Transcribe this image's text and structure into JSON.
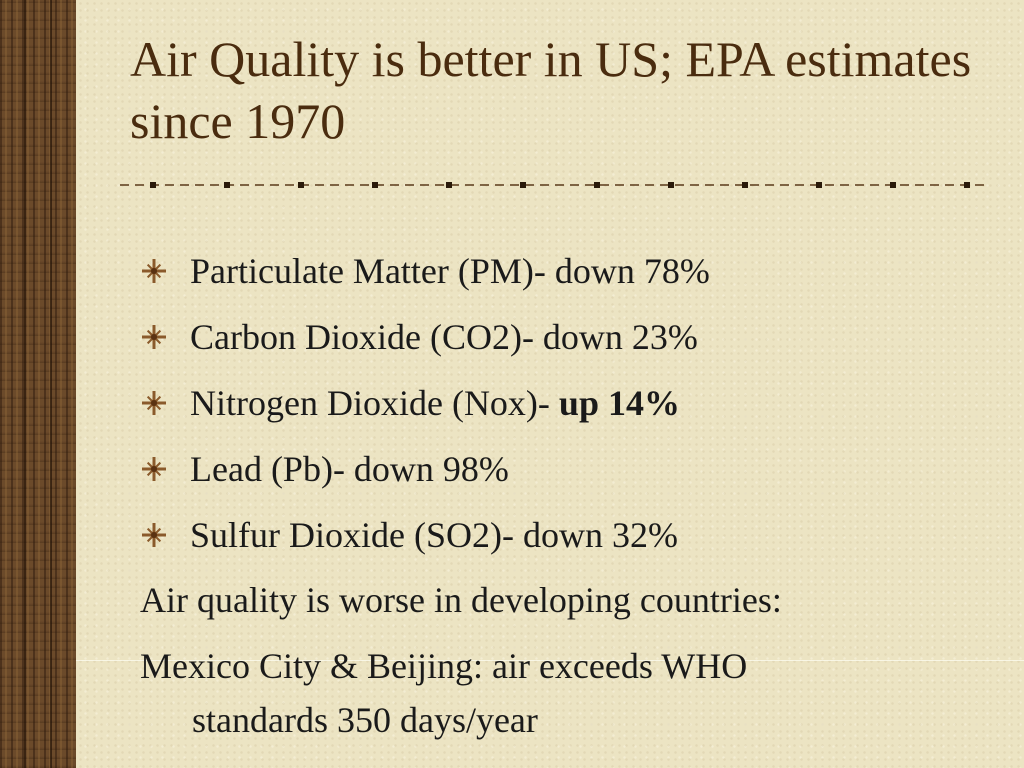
{
  "slide": {
    "title": "Air Quality is better in US; EPA estimates since 1970",
    "bullets": [
      {
        "text": "Particulate Matter (PM)- down 78%",
        "bold": ""
      },
      {
        "text": "Carbon Dioxide (CO2)- down 23%",
        "bold": ""
      },
      {
        "text": "Nitrogen Dioxide (Nox)- ",
        "bold": "up 14%"
      },
      {
        "text": "Lead (Pb)- down 98%",
        "bold": ""
      },
      {
        "text": "Sulfur Dioxide (SO2)- down 32%",
        "bold": ""
      }
    ],
    "line1": "Air quality is worse in developing countries:",
    "line2": "Mexico City & Beijing: air exceeds WHO",
    "line2_cont": "standards 350 days/year",
    "bullet_icon": "sparkle-asterisk-icon",
    "colors": {
      "title": "#4a2c0f",
      "text": "#1a1a1a",
      "background": "#ece4c3",
      "wood": "#6b4a2a",
      "bullet_icon": "#8a5a2b"
    }
  }
}
